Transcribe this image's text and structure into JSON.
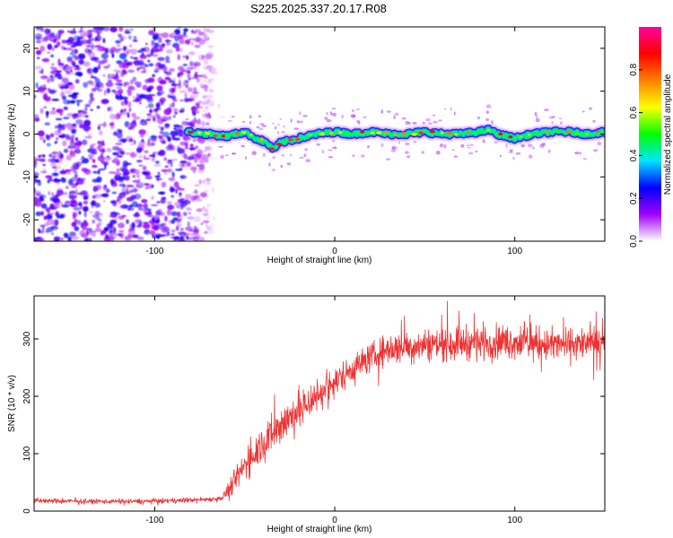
{
  "figure": {
    "title": "S225.2025.337.20.17.R08"
  },
  "chart_data": [
    {
      "type": "heatmap",
      "title": "S225.2025.337.20.17.R08",
      "xlabel": "Height of straight line (km)",
      "ylabel": "Frequency (Hz)",
      "xlim": [
        -167,
        150
      ],
      "ylim": [
        -25,
        25
      ],
      "x_ticks": [
        -100,
        0,
        100
      ],
      "x_tick_labels": [
        "-100",
        "0",
        "100"
      ],
      "y_ticks": [
        -20,
        -10,
        0,
        10,
        20
      ],
      "y_tick_labels": [
        "-20",
        "-10",
        "0",
        "10",
        "20"
      ],
      "colorbar": {
        "label": "Normalized spectral amplitude",
        "range": [
          0.0,
          1.0
        ],
        "ticks": [
          0.0,
          0.2,
          0.4,
          0.6,
          0.8
        ],
        "tick_labels": [
          "0.0",
          "0.2",
          "0.4",
          "0.6",
          "0.8"
        ],
        "colors": [
          "#ffffff",
          "#a000ff",
          "#0000ff",
          "#00e5ff",
          "#00ff00",
          "#ffff00",
          "#ff8000",
          "#ff0000",
          "#ff00a0"
        ]
      },
      "noise_region": {
        "x_range": [
          -167,
          -68
        ],
        "freq_range": [
          -25,
          25
        ],
        "typical_amplitude": 0.1
      },
      "signal_track": {
        "x_start": -82,
        "x_end": 150,
        "typical_amplitude": 0.6,
        "center_freq_hz": [
          [
            -82,
            0.5
          ],
          [
            -70,
            0.0
          ],
          [
            -60,
            -0.5
          ],
          [
            -50,
            0.5
          ],
          [
            -44,
            -1.0
          ],
          [
            -38,
            -2.0
          ],
          [
            -34,
            -3.5
          ],
          [
            -30,
            -2.0
          ],
          [
            -20,
            -1.0
          ],
          [
            -10,
            0.0
          ],
          [
            0,
            0.5
          ],
          [
            10,
            0.0
          ],
          [
            20,
            0.5
          ],
          [
            30,
            0.0
          ],
          [
            40,
            0.0
          ],
          [
            50,
            0.5
          ],
          [
            60,
            0.0
          ],
          [
            70,
            0.0
          ],
          [
            80,
            0.5
          ],
          [
            86,
            1.0
          ],
          [
            90,
            0.0
          ],
          [
            100,
            -1.0
          ],
          [
            110,
            0.0
          ],
          [
            120,
            0.5
          ],
          [
            130,
            0.5
          ],
          [
            140,
            0.0
          ],
          [
            150,
            0.5
          ]
        ]
      }
    },
    {
      "type": "line",
      "xlabel": "Height of straight line (km)",
      "ylabel": "SNR (10 * v/v)",
      "xlim": [
        -167,
        150
      ],
      "ylim": [
        0,
        375
      ],
      "x_ticks": [
        -100,
        0,
        100
      ],
      "x_tick_labels": [
        "-100",
        "0",
        "100"
      ],
      "y_ticks": [
        0,
        100,
        200,
        300
      ],
      "y_tick_labels": [
        "0",
        "100",
        "200",
        "300"
      ],
      "series": [
        {
          "name": "SNR",
          "color": "#ee3333",
          "trend": [
            [
              -167,
              18
            ],
            [
              -140,
              17
            ],
            [
              -110,
              17
            ],
            [
              -90,
              18
            ],
            [
              -75,
              20
            ],
            [
              -63,
              22
            ],
            [
              -58,
              40
            ],
            [
              -50,
              80
            ],
            [
              -40,
              120
            ],
            [
              -30,
              150
            ],
            [
              -20,
              175
            ],
            [
              -10,
              200
            ],
            [
              0,
              225
            ],
            [
              10,
              250
            ],
            [
              20,
              268
            ],
            [
              30,
              282
            ],
            [
              40,
              288
            ],
            [
              60,
              292
            ],
            [
              80,
              295
            ],
            [
              100,
              295
            ],
            [
              120,
              290
            ],
            [
              150,
              292
            ]
          ],
          "noise_amplitude": [
            [
              -167,
              6
            ],
            [
              -63,
              6
            ],
            [
              -58,
              25
            ],
            [
              -45,
              45
            ],
            [
              -30,
              55
            ],
            [
              -10,
              45
            ],
            [
              10,
              35
            ],
            [
              30,
              40
            ],
            [
              80,
              45
            ],
            [
              150,
              40
            ]
          ]
        }
      ]
    }
  ]
}
